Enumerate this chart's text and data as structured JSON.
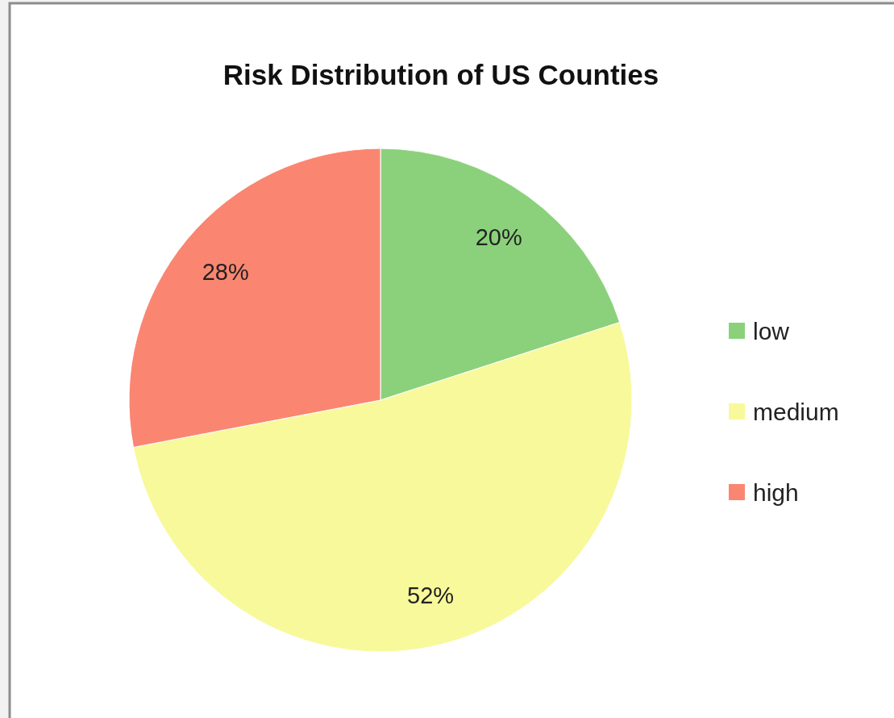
{
  "chart_data": {
    "type": "pie",
    "title": "Risk Distribution of US Counties",
    "categories": [
      "low",
      "medium",
      "high"
    ],
    "values": [
      20,
      52,
      28
    ],
    "colors": [
      "#8bd17c",
      "#f8f99a",
      "#fa8671"
    ],
    "value_labels": [
      "20%",
      "52%",
      "28%"
    ],
    "legend": "right"
  }
}
